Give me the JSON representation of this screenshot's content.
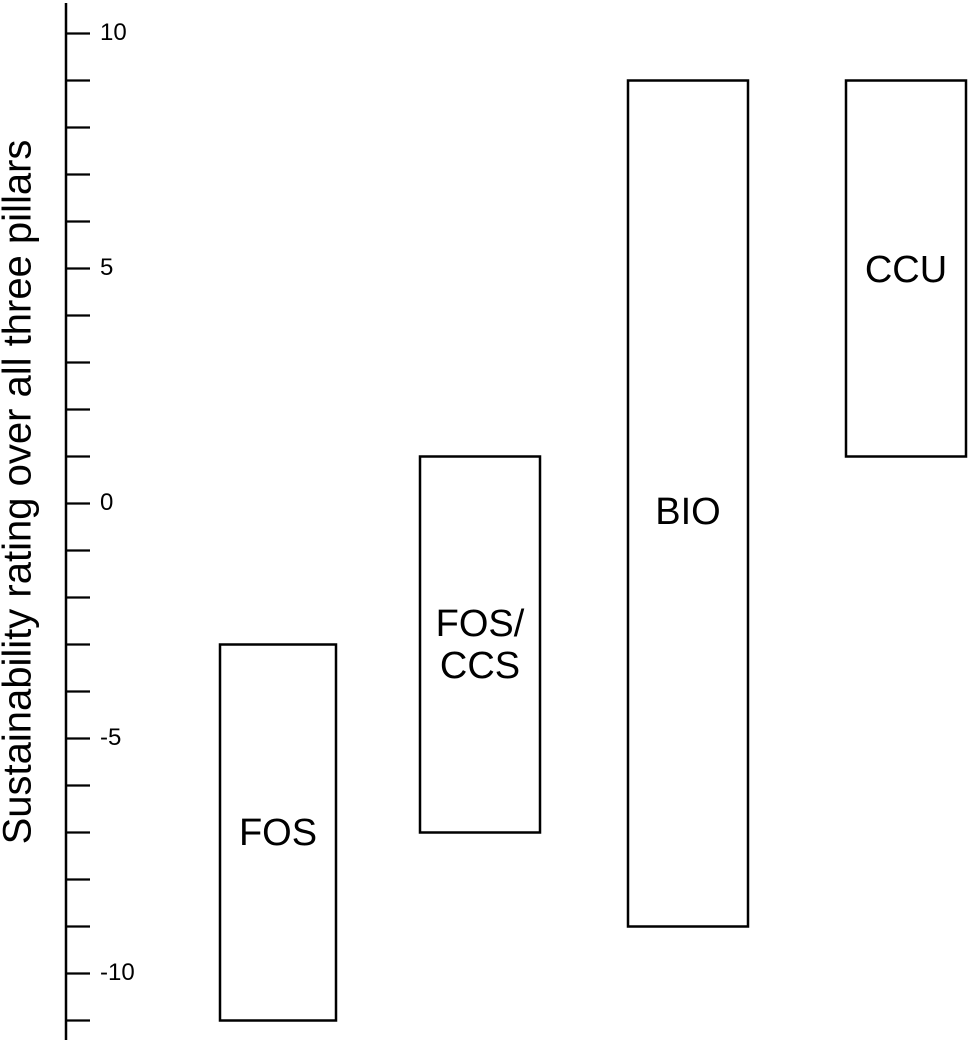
{
  "chart_data": {
    "type": "bar",
    "subtype": "floating-range",
    "ylabel": "Sustainability rating over all three pillars",
    "xlabel": "",
    "ylim": [
      -11,
      10
    ],
    "yticks_major": [
      10,
      5,
      0,
      -5,
      -10
    ],
    "ytick_labels": [
      "10",
      "5",
      "0",
      "-5",
      "-10"
    ],
    "minor_tick_step": 1,
    "grid": false,
    "legend": "none",
    "bar_fill": "#ffffff",
    "bar_stroke": "#000000",
    "categories": [
      "FOS",
      "FOS/CCS",
      "BIO",
      "CCU"
    ],
    "ranges": [
      {
        "name": "FOS",
        "label_lines": [
          "FOS"
        ],
        "low": -11,
        "high": -3
      },
      {
        "name": "FOS/CCS",
        "label_lines": [
          "FOS/",
          "CCS"
        ],
        "low": -7,
        "high": 1
      },
      {
        "name": "BIO",
        "label_lines": [
          "BIO"
        ],
        "low": -9,
        "high": 9
      },
      {
        "name": "CCU",
        "label_lines": [
          "CCU"
        ],
        "low": 1,
        "high": 9
      }
    ]
  }
}
